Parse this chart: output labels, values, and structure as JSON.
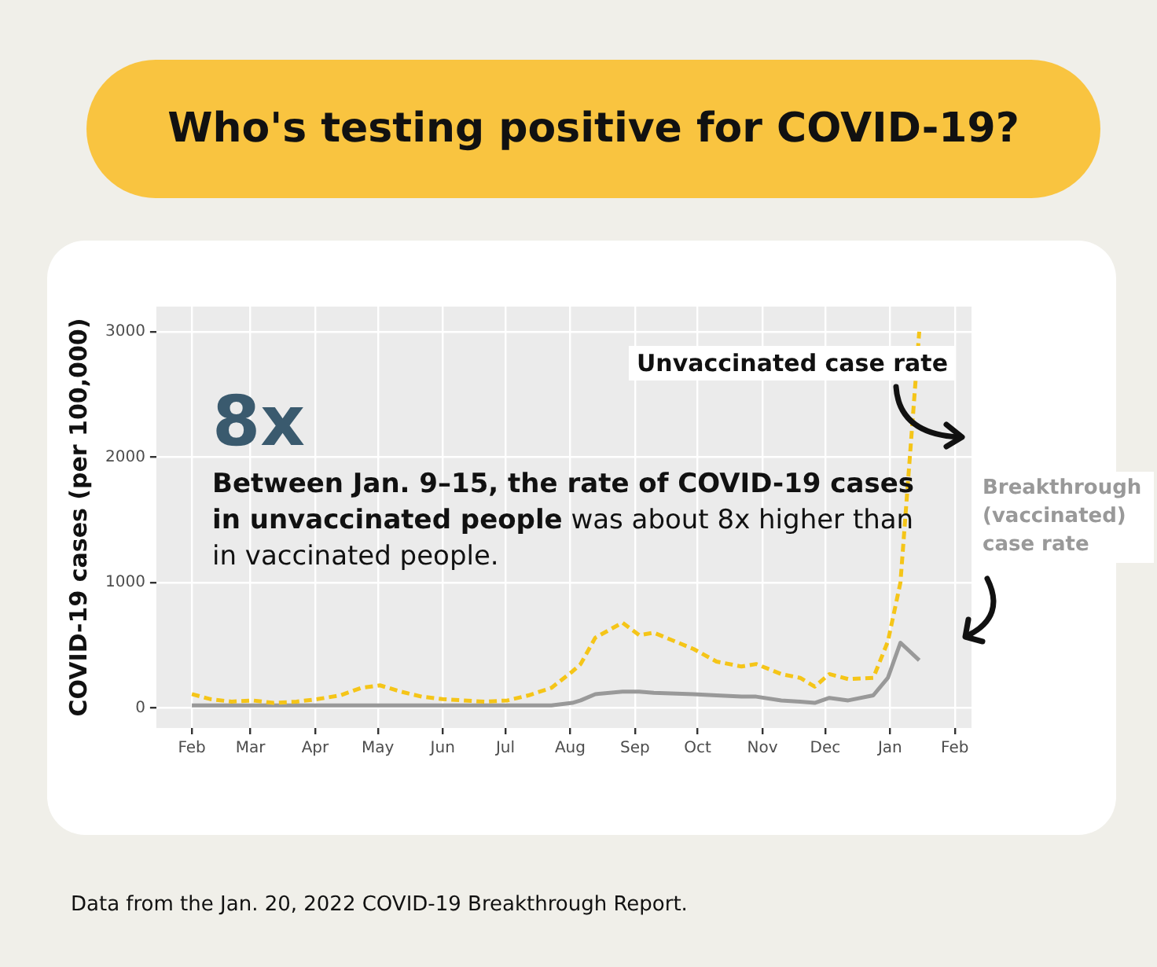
{
  "chart_data": {
    "type": "line",
    "title": "Who's testing positive for COVID-19?",
    "ylabel": "COVID-19 cases (per 100,000)",
    "annotations": [
      "8x",
      "Between Jan. 9–15, the rate of COVID-19 cases in unvaccinated people",
      "was about 8x higher than in vaccinated people.",
      "Data from the Jan. 20, 2022 COVID-19 Breakthrough Report."
    ],
    "xlim": [
      "2021-01-15",
      "2022-02-09"
    ],
    "xticks": [
      {
        "value": "2021-02-01",
        "label": "Feb"
      },
      {
        "value": "2021-03-01",
        "label": "Mar"
      },
      {
        "value": "2021-04-01",
        "label": "Apr"
      },
      {
        "value": "2021-05-01",
        "label": "May"
      },
      {
        "value": "2021-06-01",
        "label": "Jun"
      },
      {
        "value": "2021-07-01",
        "label": "Jul"
      },
      {
        "value": "2021-08-01",
        "label": "Aug"
      },
      {
        "value": "2021-09-01",
        "label": "Sep"
      },
      {
        "value": "2021-10-01",
        "label": "Oct"
      },
      {
        "value": "2021-11-01",
        "label": "Nov"
      },
      {
        "value": "2021-12-01",
        "label": "Dec"
      },
      {
        "value": "2022-01-01",
        "label": "Jan"
      },
      {
        "value": "2022-02-01",
        "label": "Feb"
      }
    ],
    "ylim": [
      -160,
      3200
    ],
    "yticks": [
      0,
      1000,
      2000,
      3000
    ],
    "grid": true,
    "legend": false,
    "marker": "none",
    "series": [
      {
        "name": "Unvaccinated case rate",
        "color": "#f5c518",
        "line_style": "dashed",
        "x": [
          "2021-02-01",
          "2021-02-10",
          "2021-02-20",
          "2021-03-02",
          "2021-03-12",
          "2021-03-23",
          "2021-04-02",
          "2021-04-13",
          "2021-04-23",
          "2021-05-02",
          "2021-05-12",
          "2021-05-22",
          "2021-06-01",
          "2021-06-11",
          "2021-06-21",
          "2021-07-02",
          "2021-07-12",
          "2021-07-23",
          "2021-08-02",
          "2021-08-06",
          "2021-08-13",
          "2021-08-26",
          "2021-09-03",
          "2021-09-10",
          "2021-09-29",
          "2021-10-10",
          "2021-10-22",
          "2021-10-29",
          "2021-11-10",
          "2021-11-19",
          "2021-11-26",
          "2021-12-03",
          "2021-12-12",
          "2021-12-24",
          "2021-12-31",
          "2022-01-06",
          "2022-01-15"
        ],
        "values": [
          110,
          70,
          50,
          60,
          40,
          50,
          70,
          100,
          160,
          180,
          130,
          90,
          70,
          60,
          50,
          60,
          100,
          160,
          290,
          350,
          560,
          680,
          580,
          600,
          470,
          370,
          330,
          350,
          270,
          240,
          170,
          270,
          230,
          240,
          530,
          1000,
          3000
        ]
      },
      {
        "name": "Breakthrough (vaccinated) case rate",
        "color": "#999999",
        "line_style": "solid",
        "x": [
          "2021-02-01",
          "2021-03-01",
          "2021-04-01",
          "2021-05-01",
          "2021-06-01",
          "2021-07-01",
          "2021-07-23",
          "2021-08-02",
          "2021-08-06",
          "2021-08-13",
          "2021-08-26",
          "2021-09-03",
          "2021-09-10",
          "2021-09-29",
          "2021-10-10",
          "2021-10-22",
          "2021-10-29",
          "2021-11-10",
          "2021-11-19",
          "2021-11-26",
          "2021-12-03",
          "2021-12-12",
          "2021-12-24",
          "2021-12-31",
          "2022-01-06",
          "2022-01-15"
        ],
        "values": [
          20,
          20,
          20,
          20,
          20,
          20,
          20,
          40,
          60,
          110,
          130,
          130,
          120,
          110,
          100,
          90,
          90,
          60,
          50,
          40,
          80,
          60,
          100,
          240,
          520,
          380
        ]
      }
    ]
  }
}
